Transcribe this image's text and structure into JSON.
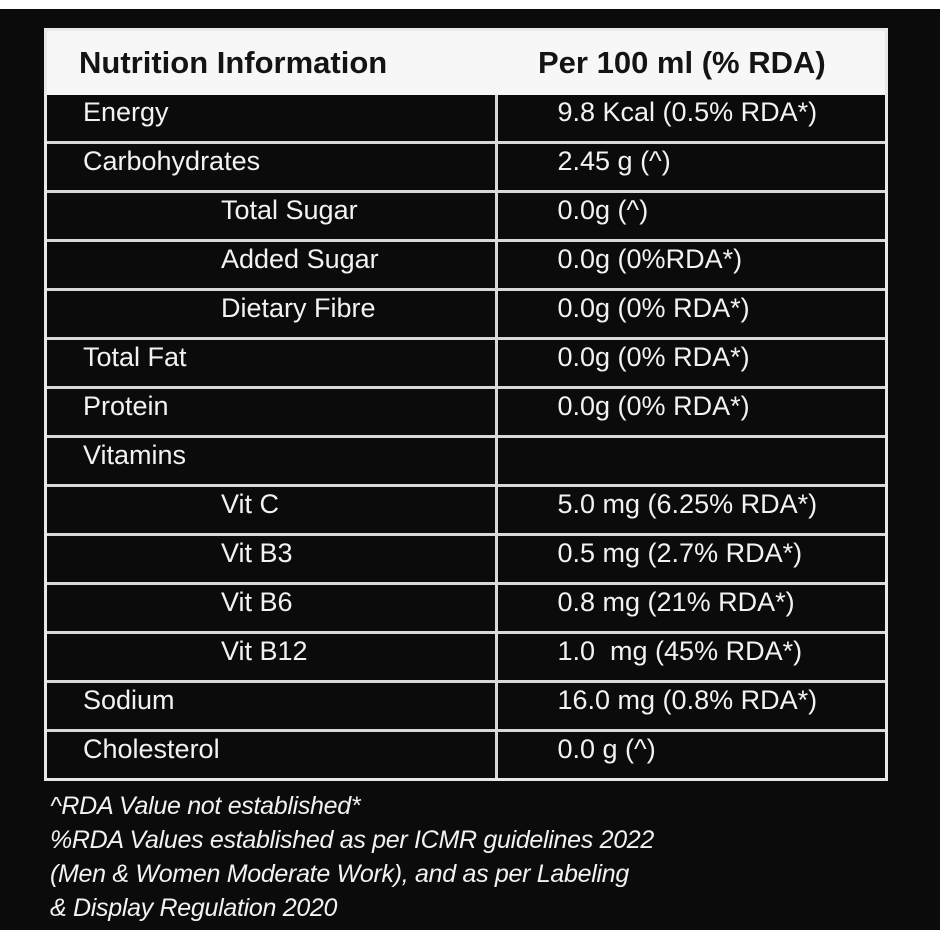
{
  "table": {
    "headers": {
      "nutrient": "Nutrition Information",
      "value": "Per 100 ml (% RDA)"
    },
    "rows": [
      {
        "name": "Energy",
        "value": "9.8 Kcal (0.5% RDA*)",
        "indent": false
      },
      {
        "name": "Carbohydrates",
        "value": "2.45 g (^)",
        "indent": false
      },
      {
        "name": "Total Sugar",
        "value": "0.0g (^)",
        "indent": true
      },
      {
        "name": "Added Sugar",
        "value": "0.0g (0%RDA*)",
        "indent": true
      },
      {
        "name": "Dietary Fibre",
        "value": "0.0g (0% RDA*)",
        "indent": true
      },
      {
        "name": "Total Fat",
        "value": "0.0g (0% RDA*)",
        "indent": false
      },
      {
        "name": "Protein",
        "value": "0.0g (0% RDA*)",
        "indent": false
      },
      {
        "name": "Vitamins",
        "value": "",
        "indent": false
      },
      {
        "name": "Vit C",
        "value": "5.0 mg (6.25% RDA*)",
        "indent": true
      },
      {
        "name": "Vit B3",
        "value": "0.5 mg (2.7% RDA*)",
        "indent": true
      },
      {
        "name": "Vit B6",
        "value": "0.8 mg (21% RDA*)",
        "indent": true
      },
      {
        "name": "Vit B12",
        "value": "1.0  mg (45% RDA*)",
        "indent": true
      },
      {
        "name": "Sodium",
        "value": "16.0 mg (0.8% RDA*)",
        "indent": false
      },
      {
        "name": "Cholesterol",
        "value": "0.0 g (^)",
        "indent": false
      }
    ]
  },
  "footnotes": [
    "^RDA Value not established*",
    "%RDA Values established as per ICMR guidelines 2022",
    "(Men & Women Moderate Work), and as per Labeling",
    "& Display Regulation 2020"
  ],
  "colors": {
    "background": "#0b0b0b",
    "header_bg": "#f7f7f7",
    "header_text": "#141414",
    "body_text": "#f2f2f2",
    "grid_lines": "#d9d9d9"
  }
}
